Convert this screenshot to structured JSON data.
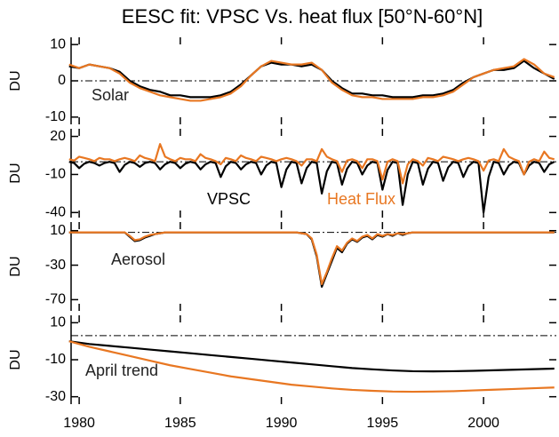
{
  "chart_data": [
    {
      "type": "line",
      "title": "EESC fit: VPSC Vs. heat flux [50°N-60°N]",
      "ylabel": "DU",
      "annotation": "Solar",
      "xlim": [
        1979.6,
        2003.6
      ],
      "ylim": [
        -12,
        12
      ],
      "yticks": [
        10,
        0,
        -10
      ],
      "hline": 0,
      "x": [
        1979.5,
        1980,
        1980.5,
        1981,
        1981.5,
        1982,
        1982.5,
        1983,
        1983.5,
        1984,
        1984.5,
        1985,
        1985.5,
        1986,
        1986.5,
        1987,
        1987.5,
        1988,
        1988.5,
        1989,
        1989.5,
        1990,
        1990.5,
        1991,
        1991.5,
        1992,
        1992.5,
        1993,
        1993.5,
        1994,
        1994.5,
        1995,
        1995.5,
        1996,
        1996.5,
        1997,
        1997.5,
        1998,
        1998.5,
        1999,
        1999.5,
        2000,
        2000.5,
        2001,
        2001.5,
        2002,
        2002.5,
        2003,
        2003.5
      ],
      "series": [
        {
          "color": "#000000",
          "values": [
            4,
            3.5,
            4.5,
            4,
            3.5,
            2.5,
            0,
            -1.5,
            -2.5,
            -3,
            -4,
            -4,
            -4.5,
            -4.5,
            -4.5,
            -4,
            -3,
            -1,
            1.5,
            4,
            5,
            4.5,
            4.5,
            4,
            4.5,
            3,
            0,
            -2,
            -3.5,
            -3.5,
            -4,
            -4,
            -4.5,
            -4.5,
            -4.5,
            -4,
            -4,
            -3.5,
            -2.5,
            -0.5,
            1,
            2,
            3,
            3,
            3.5,
            5.5,
            3.5,
            2,
            0.5
          ]
        },
        {
          "color": "#e87722",
          "values": [
            4.5,
            3.5,
            4.5,
            4,
            3.5,
            2,
            -0.5,
            -2,
            -3,
            -4,
            -4.5,
            -5,
            -5.5,
            -5.5,
            -5,
            -4.5,
            -3.5,
            -1.5,
            1.5,
            4,
            5.5,
            5,
            4.5,
            4.5,
            5,
            3,
            -0.5,
            -2.5,
            -4,
            -4.5,
            -4.5,
            -5,
            -5,
            -5,
            -5,
            -4.5,
            -4.5,
            -4,
            -3,
            -1,
            1,
            2,
            3,
            3.5,
            4,
            6,
            4.5,
            2,
            1
          ]
        }
      ]
    },
    {
      "type": "line",
      "ylabel": "DU",
      "xlim": [
        1979.6,
        2003.6
      ],
      "ylim": [
        -44,
        26
      ],
      "yticks": [
        20,
        -10,
        -40
      ],
      "hline": 0,
      "x": [
        1979.5,
        1979.75,
        1980,
        1980.25,
        1980.5,
        1980.75,
        1981,
        1981.25,
        1981.5,
        1981.75,
        1982,
        1982.25,
        1982.5,
        1982.75,
        1983,
        1983.25,
        1983.5,
        1983.75,
        1984,
        1984.25,
        1984.5,
        1984.75,
        1985,
        1985.25,
        1985.5,
        1985.75,
        1986,
        1986.25,
        1986.5,
        1986.75,
        1987,
        1987.25,
        1987.5,
        1987.75,
        1988,
        1988.25,
        1988.5,
        1988.75,
        1989,
        1989.25,
        1989.5,
        1989.75,
        1990,
        1990.25,
        1990.5,
        1990.75,
        1991,
        1991.25,
        1991.5,
        1991.75,
        1992,
        1992.25,
        1992.5,
        1992.75,
        1993,
        1993.25,
        1993.5,
        1993.75,
        1994,
        1994.25,
        1994.5,
        1994.75,
        1995,
        1995.25,
        1995.5,
        1995.75,
        1996,
        1996.25,
        1996.5,
        1996.75,
        1997,
        1997.25,
        1997.5,
        1997.75,
        1998,
        1998.25,
        1998.5,
        1998.75,
        1999,
        1999.25,
        1999.5,
        1999.75,
        2000,
        2000.25,
        2000.5,
        2000.75,
        2001,
        2001.25,
        2001.5,
        2001.75,
        2002,
        2002.25,
        2002.5,
        2002.75,
        2003,
        2003.25,
        2003.5
      ],
      "series": [
        {
          "name": "VPSC",
          "color": "#000000",
          "values": [
            0,
            -1,
            -5,
            -1.5,
            0,
            -1,
            -3,
            -1,
            0,
            -1,
            -8,
            -2.5,
            0,
            -1,
            -4,
            -1,
            0,
            -1,
            -6,
            -2,
            0,
            -1,
            -5,
            -1.5,
            0,
            -1,
            -6,
            -2,
            0,
            -1,
            -12,
            -3.5,
            0,
            -1,
            -6,
            -2,
            0,
            -1,
            -10,
            -3,
            0,
            -1,
            -20,
            -6,
            0,
            -1,
            -17,
            -5,
            0,
            -1,
            -25,
            -7.5,
            0,
            -1,
            -18,
            -5.5,
            0,
            -1,
            -10,
            -3,
            0,
            -1,
            -22,
            -6.5,
            0,
            -1,
            -34,
            -10,
            0,
            -1,
            -18,
            -5.5,
            0,
            -1,
            -15,
            -4.5,
            0,
            -1,
            -12,
            -3.5,
            0,
            -1,
            -40,
            -12,
            0,
            -1,
            -10,
            -3,
            0,
            -1,
            -10,
            -3,
            0,
            -1,
            -8,
            -2,
            0
          ]
        },
        {
          "name": "Heat Flux",
          "color": "#e87722",
          "values": [
            2,
            1,
            4,
            3,
            2,
            0.5,
            3,
            2,
            2,
            0.5,
            2,
            3,
            2,
            0.5,
            5,
            3,
            2,
            0.5,
            14,
            4,
            2,
            0.5,
            3,
            2,
            2,
            0.5,
            6,
            3,
            2,
            0.5,
            -2,
            3,
            2,
            0.5,
            5,
            3,
            2,
            0.5,
            4,
            3,
            2,
            0.5,
            2,
            3,
            2,
            0.5,
            -3,
            2,
            2,
            0.5,
            10,
            4,
            2,
            0.5,
            -8,
            1,
            2,
            0.5,
            -5,
            2,
            2,
            0.5,
            -14,
            0,
            2,
            0.5,
            -17,
            -2,
            2,
            0.5,
            -3,
            3,
            2,
            0.5,
            4,
            3,
            2,
            0.5,
            2,
            3,
            2,
            0.5,
            -7,
            1,
            2,
            0.5,
            10,
            4,
            2,
            0.5,
            -10,
            0,
            2,
            0.5,
            8,
            3,
            2
          ]
        }
      ]
    },
    {
      "type": "line",
      "ylabel": "DU",
      "annotation": "Aerosol",
      "xlim": [
        1979.6,
        2003.6
      ],
      "ylim": [
        -83,
        20
      ],
      "yticks": [
        10,
        -30,
        -70
      ],
      "hline": 8,
      "x": [
        1979.5,
        1979.75,
        1980,
        1980.25,
        1980.5,
        1980.75,
        1981,
        1981.25,
        1981.5,
        1981.75,
        1982,
        1982.25,
        1982.5,
        1982.75,
        1983,
        1983.25,
        1983.5,
        1983.75,
        1984,
        1984.25,
        1984.5,
        1984.75,
        1985,
        1985.25,
        1985.5,
        1985.75,
        1986,
        1986.25,
        1986.5,
        1986.75,
        1987,
        1987.25,
        1987.5,
        1987.75,
        1988,
        1988.25,
        1988.5,
        1988.75,
        1989,
        1989.25,
        1989.5,
        1989.75,
        1990,
        1990.25,
        1990.5,
        1990.75,
        1991,
        1991.25,
        1991.5,
        1991.75,
        1992,
        1992.25,
        1992.5,
        1992.75,
        1993,
        1993.25,
        1993.5,
        1993.75,
        1994,
        1994.25,
        1994.5,
        1994.75,
        1995,
        1995.25,
        1995.5,
        1995.75,
        1996,
        1996.25,
        1996.5,
        1996.75,
        1997,
        1997.25,
        1997.5,
        1997.75,
        1998,
        1998.25,
        1998.5,
        1998.75,
        1999,
        1999.25,
        1999.5,
        1999.75,
        2000,
        2000.25,
        2000.5,
        2000.75,
        2001,
        2001.25,
        2001.5,
        2001.75,
        2002,
        2002.25,
        2002.5,
        2002.75,
        2003,
        2003.25,
        2003.5
      ],
      "series": [
        {
          "color": "#000000",
          "values": [
            8,
            8,
            8,
            8,
            8,
            8,
            8,
            8,
            8,
            8,
            8,
            8,
            3,
            -2,
            -1,
            2,
            4,
            6,
            7,
            8,
            8,
            8,
            8,
            8,
            8,
            8,
            8,
            8,
            8,
            8,
            8,
            8,
            8,
            8,
            8,
            8,
            8,
            8,
            8,
            8,
            8,
            8,
            8,
            8,
            8,
            8,
            7,
            6,
            0,
            -20,
            -55,
            -40,
            -25,
            -10,
            -15,
            -5,
            0,
            -3,
            2,
            4,
            0,
            5,
            3,
            6,
            4,
            7,
            5,
            7,
            8,
            8,
            8,
            8,
            8,
            8,
            8,
            8,
            8,
            8,
            8,
            8,
            8,
            8,
            8,
            8,
            8,
            8,
            8,
            8,
            8,
            8,
            8,
            8,
            8,
            8,
            8,
            8,
            8
          ]
        },
        {
          "color": "#e87722",
          "values": [
            8,
            8,
            8,
            8,
            8,
            8,
            8,
            8,
            8,
            8,
            8,
            8,
            4,
            -1,
            0,
            3,
            5,
            6,
            7,
            8,
            8,
            8,
            8,
            8,
            8,
            8,
            8,
            8,
            8,
            8,
            8,
            8,
            8,
            8,
            8,
            8,
            8,
            8,
            8,
            8,
            8,
            8,
            8,
            8,
            8,
            8,
            7,
            6,
            1,
            -18,
            -52,
            -38,
            -22,
            -8,
            -13,
            -4,
            1,
            -2,
            3,
            5,
            1,
            6,
            4,
            6,
            5,
            7,
            6,
            7,
            8,
            8,
            8,
            8,
            8,
            8,
            8,
            8,
            8,
            8,
            8,
            8,
            8,
            8,
            8,
            8,
            8,
            8,
            8,
            8,
            8,
            8,
            8,
            8,
            8,
            8,
            8,
            8,
            8
          ]
        }
      ]
    },
    {
      "type": "line",
      "ylabel": "DU",
      "annotation": "April trend",
      "xlim": [
        1979.6,
        2003.6
      ],
      "ylim": [
        -34,
        14
      ],
      "yticks": [
        10,
        -10,
        -30
      ],
      "hline": 3,
      "xticks": [
        1980,
        1985,
        1990,
        1995,
        2000
      ],
      "x": [
        1979.5,
        1980.5,
        1981.5,
        1982.5,
        1983.5,
        1984.5,
        1985.5,
        1986.5,
        1987.5,
        1988.5,
        1989.5,
        1990.5,
        1991.5,
        1992.5,
        1993.5,
        1994.5,
        1995.5,
        1996.5,
        1997.5,
        1998.5,
        1999.5,
        2000.5,
        2001.5,
        2002.5,
        2003.5
      ],
      "series": [
        {
          "color": "#000000",
          "values": [
            0,
            -1.5,
            -2.5,
            -3.5,
            -4.5,
            -5.5,
            -6.5,
            -7.5,
            -8.5,
            -9.5,
            -10.5,
            -11.5,
            -12.5,
            -13.5,
            -14.5,
            -15.2,
            -15.8,
            -16.2,
            -16.3,
            -16.2,
            -16,
            -15.7,
            -15.4,
            -15.1,
            -14.8
          ]
        },
        {
          "color": "#e87722",
          "values": [
            0,
            -3,
            -5.5,
            -8,
            -10.5,
            -13,
            -15,
            -17,
            -19,
            -20.5,
            -22,
            -23.5,
            -24.5,
            -25.5,
            -26.3,
            -26.8,
            -27.2,
            -27.3,
            -27.2,
            -27,
            -26.6,
            -26.2,
            -25.8,
            -25.4,
            -25
          ]
        }
      ]
    }
  ]
}
